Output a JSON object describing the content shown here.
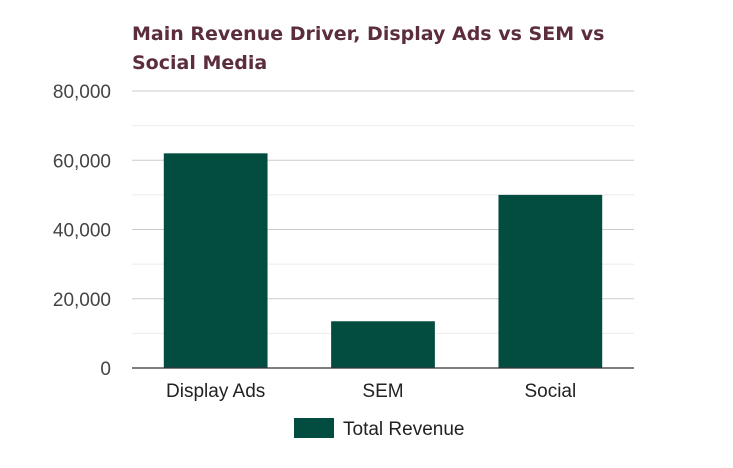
{
  "chart_data": {
    "type": "bar",
    "title": "Main Revenue Driver, Display Ads vs SEM vs Social Media",
    "categories": [
      "Display Ads",
      "SEM",
      "Social"
    ],
    "series": [
      {
        "name": "Total Revenue",
        "values": [
          62000,
          13500,
          50000
        ],
        "color": "#034c40"
      }
    ],
    "yticks": [
      "0",
      "20,000",
      "40,000",
      "60,000",
      "80,000"
    ],
    "ylim": [
      0,
      80000
    ],
    "grid": true,
    "legend": "bottom",
    "colors": {
      "title": "#5c2d3c",
      "bar": "#034c40",
      "grid": "#d9d9d9",
      "axis": "#333333"
    }
  }
}
